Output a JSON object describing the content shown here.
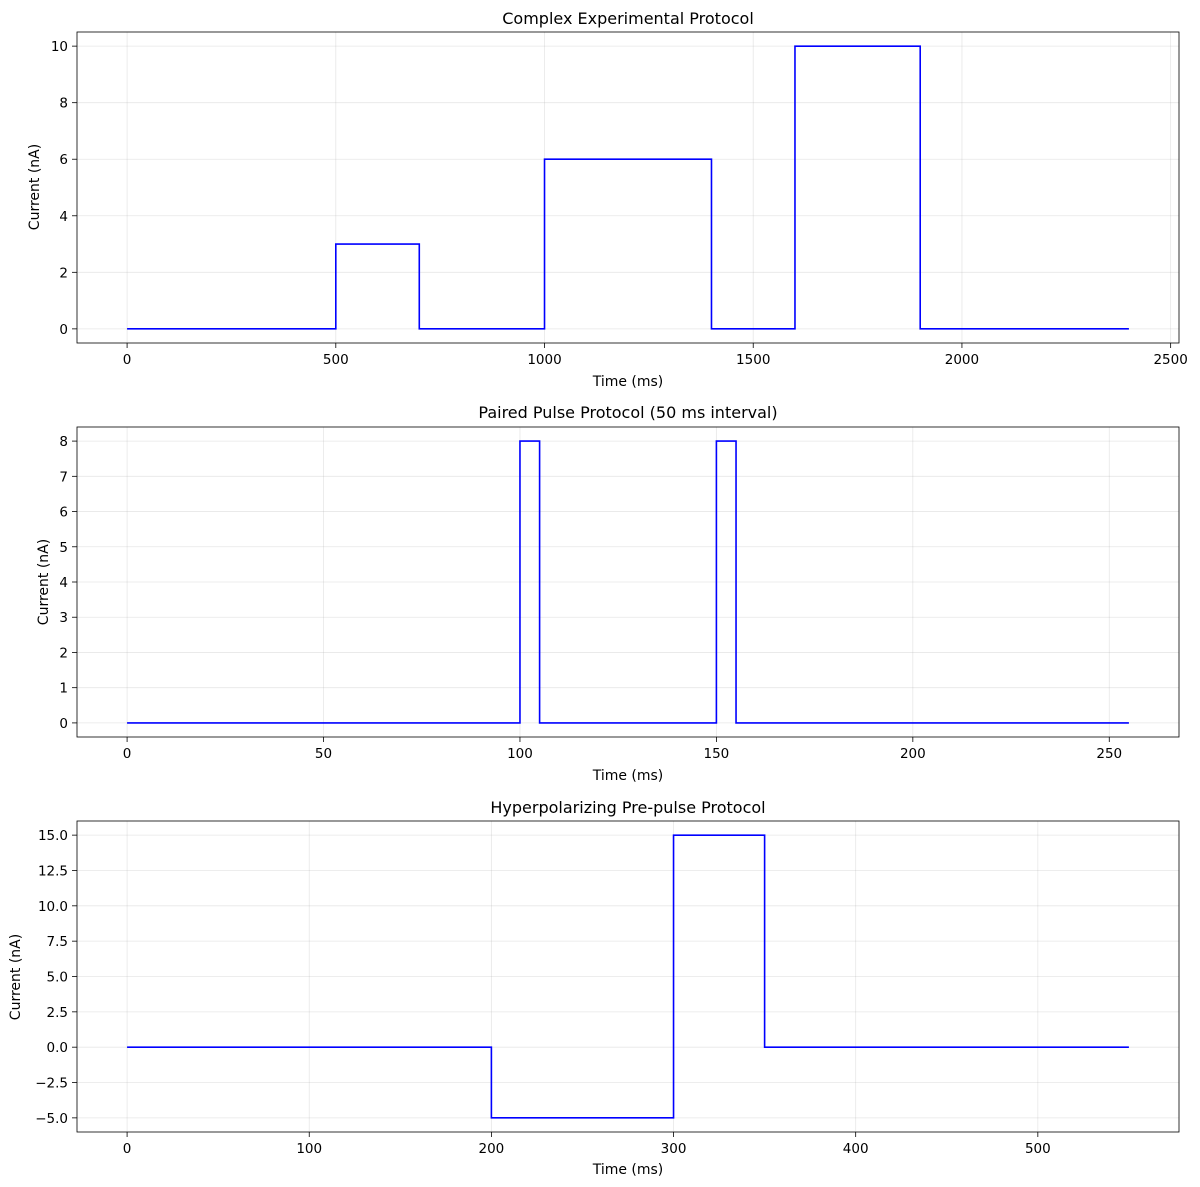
{
  "colors": {
    "trace": "#0000ff",
    "background": "#ffffff"
  },
  "chart_data": [
    {
      "type": "line",
      "title": "Complex Experimental Protocol",
      "xlabel": "Time (ms)",
      "ylabel": "Current (nA)",
      "xlim": [
        -120,
        2520
      ],
      "ylim": [
        -0.5,
        10.5
      ],
      "xticks": [
        0,
        500,
        1000,
        1500,
        2000,
        2500
      ],
      "xtick_labels": [
        "0",
        "500",
        "1000",
        "1500",
        "2000",
        "2500"
      ],
      "yticks": [
        0,
        2,
        4,
        6,
        8,
        10
      ],
      "ytick_labels": [
        "0",
        "2",
        "4",
        "6",
        "8",
        "10"
      ],
      "grid": true,
      "series": [
        {
          "x": [
            0,
            500,
            500,
            700,
            700,
            1000,
            1000,
            1400,
            1400,
            1600,
            1600,
            1900,
            1900,
            2400
          ],
          "y": [
            0,
            0,
            3,
            3,
            0,
            0,
            6,
            6,
            0,
            0,
            10,
            10,
            0,
            0
          ]
        }
      ]
    },
    {
      "type": "line",
      "title": "Paired Pulse Protocol (50 ms interval)",
      "xlabel": "Time (ms)",
      "ylabel": "Current (nA)",
      "xlim": [
        -12.75,
        267.75
      ],
      "ylim": [
        -0.4,
        8.4
      ],
      "xticks": [
        0,
        50,
        100,
        150,
        200,
        250
      ],
      "xtick_labels": [
        "0",
        "50",
        "100",
        "150",
        "200",
        "250"
      ],
      "yticks": [
        0,
        1,
        2,
        3,
        4,
        5,
        6,
        7,
        8
      ],
      "ytick_labels": [
        "0",
        "1",
        "2",
        "3",
        "4",
        "5",
        "6",
        "7",
        "8"
      ],
      "grid": true,
      "series": [
        {
          "x": [
            0,
            100,
            100,
            105,
            105,
            150,
            150,
            155,
            155,
            255
          ],
          "y": [
            0,
            0,
            8,
            8,
            0,
            0,
            8,
            8,
            0,
            0
          ]
        }
      ]
    },
    {
      "type": "line",
      "title": "Hyperpolarizing Pre-pulse Protocol",
      "xlabel": "Time (ms)",
      "ylabel": "Current (nA)",
      "xlim": [
        -27.5,
        577.5
      ],
      "ylim": [
        -6,
        16
      ],
      "xticks": [
        0,
        100,
        200,
        300,
        400,
        500
      ],
      "xtick_labels": [
        "0",
        "100",
        "200",
        "300",
        "400",
        "500"
      ],
      "yticks": [
        -5,
        -2.5,
        0,
        2.5,
        5,
        7.5,
        10,
        12.5,
        15
      ],
      "ytick_labels": [
        "−5.0",
        "−2.5",
        "0.0",
        "2.5",
        "5.0",
        "7.5",
        "10.0",
        "12.5",
        "15.0"
      ],
      "grid": true,
      "series": [
        {
          "x": [
            0,
            200,
            200,
            300,
            300,
            350,
            350,
            550
          ],
          "y": [
            0,
            0,
            -5,
            -5,
            15,
            15,
            0,
            0
          ]
        }
      ]
    }
  ]
}
